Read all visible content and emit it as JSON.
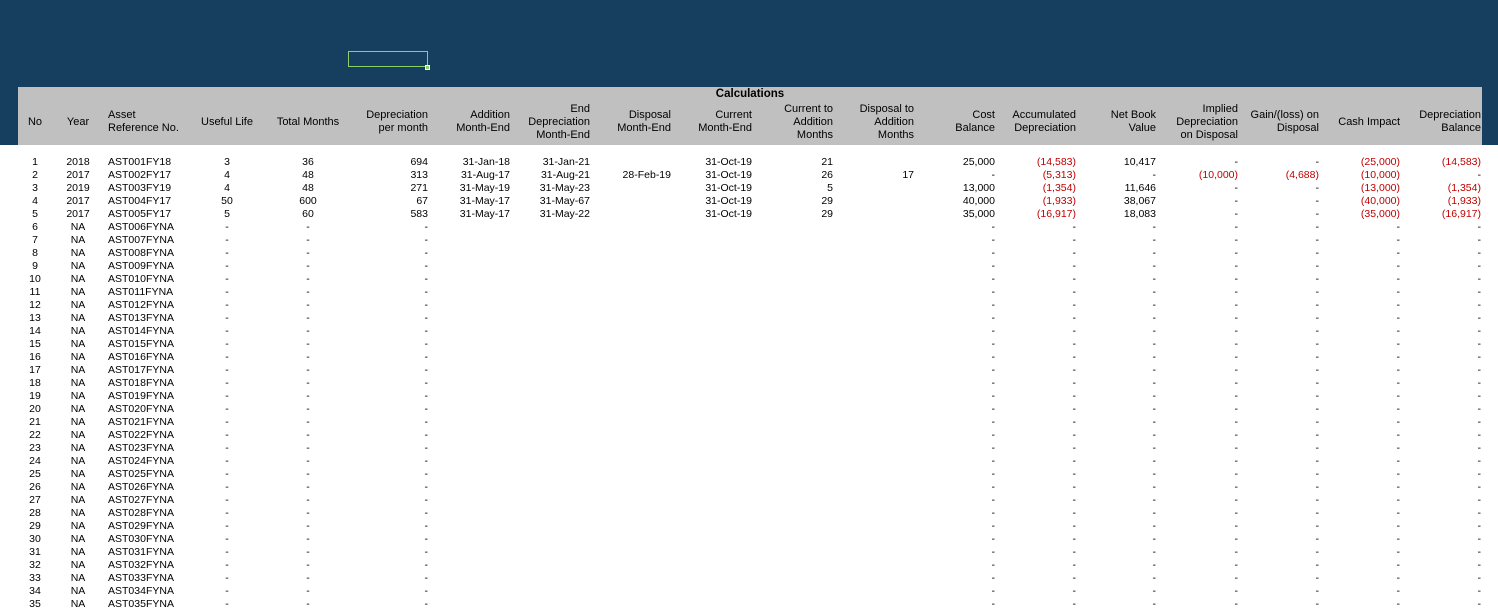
{
  "section_title": "Calculations",
  "columns": [
    {
      "key": "no",
      "label": "No"
    },
    {
      "key": "year",
      "label": "Year"
    },
    {
      "key": "ref",
      "label": "Asset\nReference No."
    },
    {
      "key": "life",
      "label": "Useful Life"
    },
    {
      "key": "months",
      "label": "Total Months"
    },
    {
      "key": "dep_pm",
      "label": "Depreciation\nper month"
    },
    {
      "key": "add_me",
      "label": "Addition\nMonth-End"
    },
    {
      "key": "end_me",
      "label": "End\nDepreciation\nMonth-End"
    },
    {
      "key": "disp_me",
      "label": "Disposal\nMonth-End"
    },
    {
      "key": "cur_me",
      "label": "Current\nMonth-End"
    },
    {
      "key": "cur_add",
      "label": "Current to\nAddition\nMonths"
    },
    {
      "key": "disp_add",
      "label": "Disposal to\nAddition\nMonths"
    },
    {
      "key": "cost",
      "label": "Cost\nBalance"
    },
    {
      "key": "acc_dep",
      "label": "Accumulated\nDepreciation"
    },
    {
      "key": "nbv",
      "label": "Net Book\nValue"
    },
    {
      "key": "impl_dep",
      "label": "Implied\nDepreciation\non Disposal"
    },
    {
      "key": "gain",
      "label": "Gain/(loss) on\nDisposal"
    },
    {
      "key": "cash",
      "label": "Cash Impact"
    },
    {
      "key": "dep_bal",
      "label": "Depreciation\nBalance"
    }
  ],
  "rows": [
    {
      "no": "1",
      "year": "2018",
      "ref": "AST001FY18",
      "life": "3",
      "months": "36",
      "dep_pm": "694",
      "add_me": "31-Jan-18",
      "end_me": "31-Jan-21",
      "disp_me": "",
      "cur_me": "31-Oct-19",
      "cur_add": "21",
      "disp_add": "",
      "cost": "25,000",
      "acc_dep": "(14,583)",
      "nbv": "10,417",
      "impl_dep": "-",
      "gain": "-",
      "cash": "(25,000)",
      "dep_bal": "(14,583)"
    },
    {
      "no": "2",
      "year": "2017",
      "ref": "AST002FY17",
      "life": "4",
      "months": "48",
      "dep_pm": "313",
      "add_me": "31-Aug-17",
      "end_me": "31-Aug-21",
      "disp_me": "28-Feb-19",
      "cur_me": "31-Oct-19",
      "cur_add": "26",
      "disp_add": "17",
      "cost": "-",
      "acc_dep": "(5,313)",
      "nbv": "-",
      "impl_dep": "(10,000)",
      "gain": "(4,688)",
      "cash": "(10,000)",
      "dep_bal": "-"
    },
    {
      "no": "3",
      "year": "2019",
      "ref": "AST003FY19",
      "life": "4",
      "months": "48",
      "dep_pm": "271",
      "add_me": "31-May-19",
      "end_me": "31-May-23",
      "disp_me": "",
      "cur_me": "31-Oct-19",
      "cur_add": "5",
      "disp_add": "",
      "cost": "13,000",
      "acc_dep": "(1,354)",
      "nbv": "11,646",
      "impl_dep": "-",
      "gain": "-",
      "cash": "(13,000)",
      "dep_bal": "(1,354)"
    },
    {
      "no": "4",
      "year": "2017",
      "ref": "AST004FY17",
      "life": "50",
      "months": "600",
      "dep_pm": "67",
      "add_me": "31-May-17",
      "end_me": "31-May-67",
      "disp_me": "",
      "cur_me": "31-Oct-19",
      "cur_add": "29",
      "disp_add": "",
      "cost": "40,000",
      "acc_dep": "(1,933)",
      "nbv": "38,067",
      "impl_dep": "-",
      "gain": "-",
      "cash": "(40,000)",
      "dep_bal": "(1,933)"
    },
    {
      "no": "5",
      "year": "2017",
      "ref": "AST005FY17",
      "life": "5",
      "months": "60",
      "dep_pm": "583",
      "add_me": "31-May-17",
      "end_me": "31-May-22",
      "disp_me": "",
      "cur_me": "31-Oct-19",
      "cur_add": "29",
      "disp_add": "",
      "cost": "35,000",
      "acc_dep": "(16,917)",
      "nbv": "18,083",
      "impl_dep": "-",
      "gain": "-",
      "cash": "(35,000)",
      "dep_bal": "(16,917)"
    },
    {
      "no": "6",
      "year": "NA",
      "ref": "AST006FYNA",
      "life": "-",
      "months": "-",
      "dep_pm": "-",
      "cost": "-",
      "acc_dep": "-",
      "nbv": "-",
      "impl_dep": "-",
      "gain": "-",
      "cash": "-",
      "dep_bal": "-"
    },
    {
      "no": "7",
      "year": "NA",
      "ref": "AST007FYNA",
      "life": "-",
      "months": "-",
      "dep_pm": "-",
      "cost": "-",
      "acc_dep": "-",
      "nbv": "-",
      "impl_dep": "-",
      "gain": "-",
      "cash": "-",
      "dep_bal": "-"
    },
    {
      "no": "8",
      "year": "NA",
      "ref": "AST008FYNA",
      "life": "-",
      "months": "-",
      "dep_pm": "-",
      "cost": "-",
      "acc_dep": "-",
      "nbv": "-",
      "impl_dep": "-",
      "gain": "-",
      "cash": "-",
      "dep_bal": "-"
    },
    {
      "no": "9",
      "year": "NA",
      "ref": "AST009FYNA",
      "life": "-",
      "months": "-",
      "dep_pm": "-",
      "cost": "-",
      "acc_dep": "-",
      "nbv": "-",
      "impl_dep": "-",
      "gain": "-",
      "cash": "-",
      "dep_bal": "-"
    },
    {
      "no": "10",
      "year": "NA",
      "ref": "AST010FYNA",
      "life": "-",
      "months": "-",
      "dep_pm": "-",
      "cost": "-",
      "acc_dep": "-",
      "nbv": "-",
      "impl_dep": "-",
      "gain": "-",
      "cash": "-",
      "dep_bal": "-"
    },
    {
      "no": "11",
      "year": "NA",
      "ref": "AST011FYNA",
      "life": "-",
      "months": "-",
      "dep_pm": "-",
      "cost": "-",
      "acc_dep": "-",
      "nbv": "-",
      "impl_dep": "-",
      "gain": "-",
      "cash": "-",
      "dep_bal": "-"
    },
    {
      "no": "12",
      "year": "NA",
      "ref": "AST012FYNA",
      "life": "-",
      "months": "-",
      "dep_pm": "-",
      "cost": "-",
      "acc_dep": "-",
      "nbv": "-",
      "impl_dep": "-",
      "gain": "-",
      "cash": "-",
      "dep_bal": "-"
    },
    {
      "no": "13",
      "year": "NA",
      "ref": "AST013FYNA",
      "life": "-",
      "months": "-",
      "dep_pm": "-",
      "cost": "-",
      "acc_dep": "-",
      "nbv": "-",
      "impl_dep": "-",
      "gain": "-",
      "cash": "-",
      "dep_bal": "-"
    },
    {
      "no": "14",
      "year": "NA",
      "ref": "AST014FYNA",
      "life": "-",
      "months": "-",
      "dep_pm": "-",
      "cost": "-",
      "acc_dep": "-",
      "nbv": "-",
      "impl_dep": "-",
      "gain": "-",
      "cash": "-",
      "dep_bal": "-"
    },
    {
      "no": "15",
      "year": "NA",
      "ref": "AST015FYNA",
      "life": "-",
      "months": "-",
      "dep_pm": "-",
      "cost": "-",
      "acc_dep": "-",
      "nbv": "-",
      "impl_dep": "-",
      "gain": "-",
      "cash": "-",
      "dep_bal": "-"
    },
    {
      "no": "16",
      "year": "NA",
      "ref": "AST016FYNA",
      "life": "-",
      "months": "-",
      "dep_pm": "-",
      "cost": "-",
      "acc_dep": "-",
      "nbv": "-",
      "impl_dep": "-",
      "gain": "-",
      "cash": "-",
      "dep_bal": "-"
    },
    {
      "no": "17",
      "year": "NA",
      "ref": "AST017FYNA",
      "life": "-",
      "months": "-",
      "dep_pm": "-",
      "cost": "-",
      "acc_dep": "-",
      "nbv": "-",
      "impl_dep": "-",
      "gain": "-",
      "cash": "-",
      "dep_bal": "-"
    },
    {
      "no": "18",
      "year": "NA",
      "ref": "AST018FYNA",
      "life": "-",
      "months": "-",
      "dep_pm": "-",
      "cost": "-",
      "acc_dep": "-",
      "nbv": "-",
      "impl_dep": "-",
      "gain": "-",
      "cash": "-",
      "dep_bal": "-"
    },
    {
      "no": "19",
      "year": "NA",
      "ref": "AST019FYNA",
      "life": "-",
      "months": "-",
      "dep_pm": "-",
      "cost": "-",
      "acc_dep": "-",
      "nbv": "-",
      "impl_dep": "-",
      "gain": "-",
      "cash": "-",
      "dep_bal": "-"
    },
    {
      "no": "20",
      "year": "NA",
      "ref": "AST020FYNA",
      "life": "-",
      "months": "-",
      "dep_pm": "-",
      "cost": "-",
      "acc_dep": "-",
      "nbv": "-",
      "impl_dep": "-",
      "gain": "-",
      "cash": "-",
      "dep_bal": "-"
    },
    {
      "no": "21",
      "year": "NA",
      "ref": "AST021FYNA",
      "life": "-",
      "months": "-",
      "dep_pm": "-",
      "cost": "-",
      "acc_dep": "-",
      "nbv": "-",
      "impl_dep": "-",
      "gain": "-",
      "cash": "-",
      "dep_bal": "-"
    },
    {
      "no": "22",
      "year": "NA",
      "ref": "AST022FYNA",
      "life": "-",
      "months": "-",
      "dep_pm": "-",
      "cost": "-",
      "acc_dep": "-",
      "nbv": "-",
      "impl_dep": "-",
      "gain": "-",
      "cash": "-",
      "dep_bal": "-"
    },
    {
      "no": "23",
      "year": "NA",
      "ref": "AST023FYNA",
      "life": "-",
      "months": "-",
      "dep_pm": "-",
      "cost": "-",
      "acc_dep": "-",
      "nbv": "-",
      "impl_dep": "-",
      "gain": "-",
      "cash": "-",
      "dep_bal": "-"
    },
    {
      "no": "24",
      "year": "NA",
      "ref": "AST024FYNA",
      "life": "-",
      "months": "-",
      "dep_pm": "-",
      "cost": "-",
      "acc_dep": "-",
      "nbv": "-",
      "impl_dep": "-",
      "gain": "-",
      "cash": "-",
      "dep_bal": "-"
    },
    {
      "no": "25",
      "year": "NA",
      "ref": "AST025FYNA",
      "life": "-",
      "months": "-",
      "dep_pm": "-",
      "cost": "-",
      "acc_dep": "-",
      "nbv": "-",
      "impl_dep": "-",
      "gain": "-",
      "cash": "-",
      "dep_bal": "-"
    },
    {
      "no": "26",
      "year": "NA",
      "ref": "AST026FYNA",
      "life": "-",
      "months": "-",
      "dep_pm": "-",
      "cost": "-",
      "acc_dep": "-",
      "nbv": "-",
      "impl_dep": "-",
      "gain": "-",
      "cash": "-",
      "dep_bal": "-"
    },
    {
      "no": "27",
      "year": "NA",
      "ref": "AST027FYNA",
      "life": "-",
      "months": "-",
      "dep_pm": "-",
      "cost": "-",
      "acc_dep": "-",
      "nbv": "-",
      "impl_dep": "-",
      "gain": "-",
      "cash": "-",
      "dep_bal": "-"
    },
    {
      "no": "28",
      "year": "NA",
      "ref": "AST028FYNA",
      "life": "-",
      "months": "-",
      "dep_pm": "-",
      "cost": "-",
      "acc_dep": "-",
      "nbv": "-",
      "impl_dep": "-",
      "gain": "-",
      "cash": "-",
      "dep_bal": "-"
    },
    {
      "no": "29",
      "year": "NA",
      "ref": "AST029FYNA",
      "life": "-",
      "months": "-",
      "dep_pm": "-",
      "cost": "-",
      "acc_dep": "-",
      "nbv": "-",
      "impl_dep": "-",
      "gain": "-",
      "cash": "-",
      "dep_bal": "-"
    },
    {
      "no": "30",
      "year": "NA",
      "ref": "AST030FYNA",
      "life": "-",
      "months": "-",
      "dep_pm": "-",
      "cost": "-",
      "acc_dep": "-",
      "nbv": "-",
      "impl_dep": "-",
      "gain": "-",
      "cash": "-",
      "dep_bal": "-"
    },
    {
      "no": "31",
      "year": "NA",
      "ref": "AST031FYNA",
      "life": "-",
      "months": "-",
      "dep_pm": "-",
      "cost": "-",
      "acc_dep": "-",
      "nbv": "-",
      "impl_dep": "-",
      "gain": "-",
      "cash": "-",
      "dep_bal": "-"
    },
    {
      "no": "32",
      "year": "NA",
      "ref": "AST032FYNA",
      "life": "-",
      "months": "-",
      "dep_pm": "-",
      "cost": "-",
      "acc_dep": "-",
      "nbv": "-",
      "impl_dep": "-",
      "gain": "-",
      "cash": "-",
      "dep_bal": "-"
    },
    {
      "no": "33",
      "year": "NA",
      "ref": "AST033FYNA",
      "life": "-",
      "months": "-",
      "dep_pm": "-",
      "cost": "-",
      "acc_dep": "-",
      "nbv": "-",
      "impl_dep": "-",
      "gain": "-",
      "cash": "-",
      "dep_bal": "-"
    },
    {
      "no": "34",
      "year": "NA",
      "ref": "AST034FYNA",
      "life": "-",
      "months": "-",
      "dep_pm": "-",
      "cost": "-",
      "acc_dep": "-",
      "nbv": "-",
      "impl_dep": "-",
      "gain": "-",
      "cash": "-",
      "dep_bal": "-"
    },
    {
      "no": "35",
      "year": "NA",
      "ref": "AST035FYNA",
      "life": "-",
      "months": "-",
      "dep_pm": "-",
      "cost": "-",
      "acc_dep": "-",
      "nbv": "-",
      "impl_dep": "-",
      "gain": "-",
      "cash": "-",
      "dep_bal": "-"
    }
  ],
  "colors": {
    "banner": "#163f5f",
    "header_band": "#c0c0c0",
    "negative": "#c00000",
    "selection": "#8bd06a"
  }
}
